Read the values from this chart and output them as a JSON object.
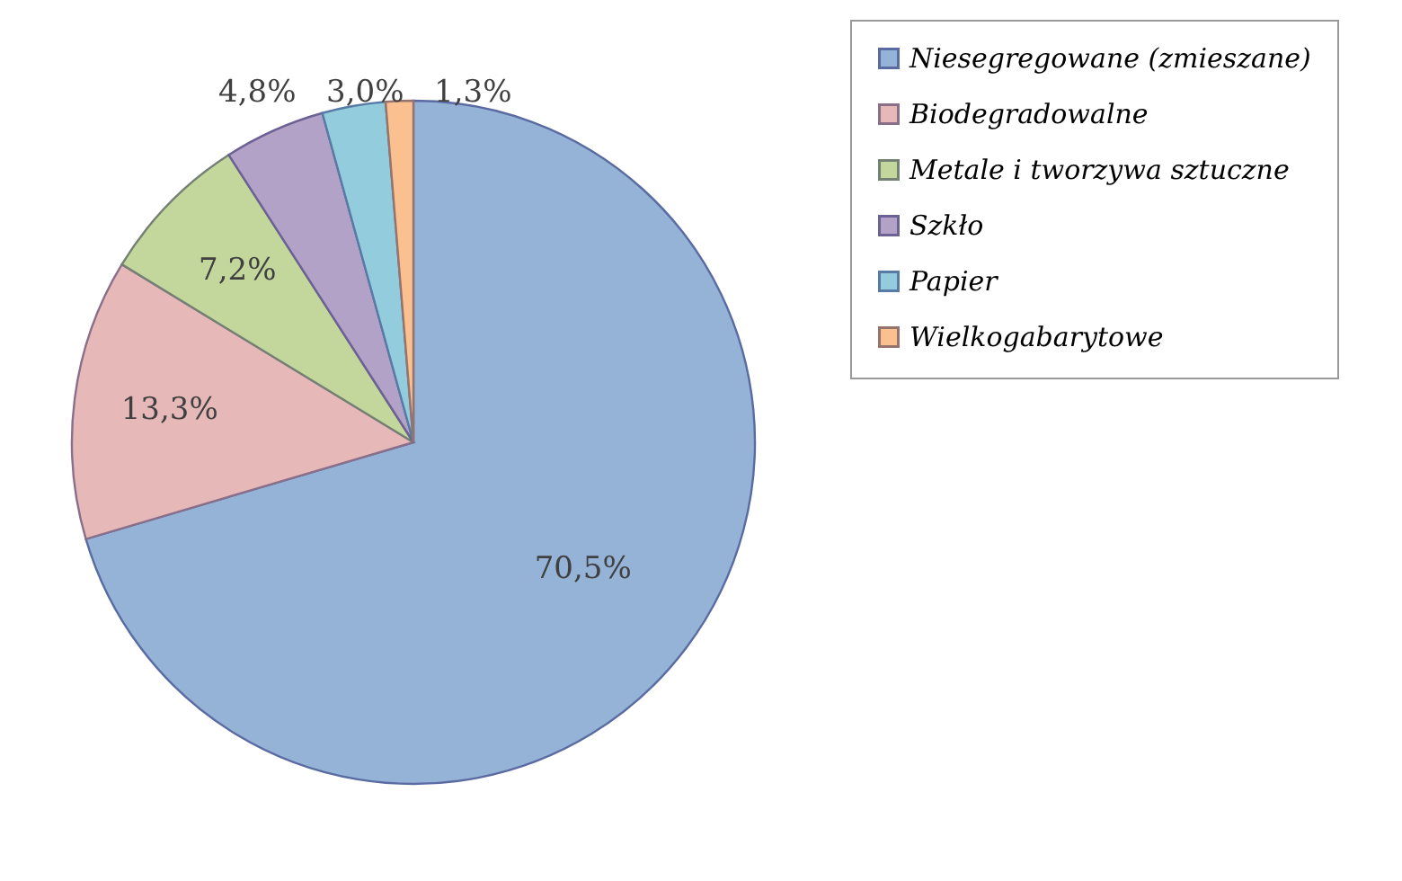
{
  "chart_data": {
    "type": "pie",
    "categories": [
      "Niesegregowane (zmieszane)",
      "Biodegradowalne",
      "Metale i tworzywa sztuczne",
      "Szkło",
      "Papier",
      "Wielkogabarytowe"
    ],
    "values": [
      70.5,
      13.3,
      7.2,
      4.8,
      3.0,
      1.3
    ],
    "value_labels": [
      "70,5%",
      "13,3%",
      "7,2%",
      "4,8%",
      "3,0%",
      "1,3%"
    ],
    "colors": [
      "#95b3d7",
      "#e6b9b8",
      "#c3d69b",
      "#b3a2c7",
      "#93cddd",
      "#fac090"
    ],
    "legend": "right"
  }
}
